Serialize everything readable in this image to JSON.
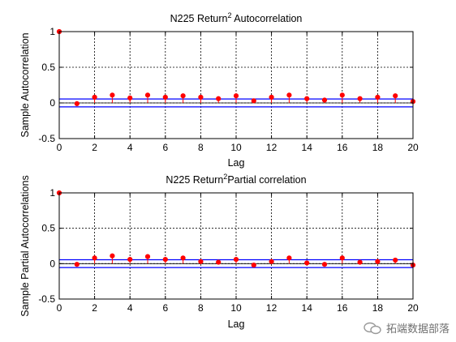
{
  "chart_data": [
    {
      "type": "stem",
      "title_main": "N225 Return",
      "title_sup": "2",
      "title_rest": " Autocorrelation",
      "xlabel": "Lag",
      "ylabel": "Sample Autocorrelation",
      "xlim": [
        0,
        20
      ],
      "ylim": [
        -0.5,
        1
      ],
      "xticks": [
        "0",
        "2",
        "4",
        "6",
        "8",
        "10",
        "12",
        "14",
        "16",
        "18",
        "20"
      ],
      "yticks": [
        "-0.5",
        "0",
        "0.5",
        "1"
      ],
      "grid": true,
      "bounds": 0.055,
      "x": [
        0,
        1,
        2,
        3,
        4,
        5,
        6,
        7,
        8,
        9,
        10,
        11,
        12,
        13,
        14,
        15,
        16,
        17,
        18,
        19,
        20
      ],
      "values": [
        1,
        -0.01,
        0.08,
        0.11,
        0.07,
        0.11,
        0.08,
        0.1,
        0.08,
        0.06,
        0.1,
        0.03,
        0.08,
        0.11,
        0.06,
        0.04,
        0.11,
        0.06,
        0.08,
        0.1,
        0.02
      ]
    },
    {
      "type": "stem",
      "title_main": "N225 Return",
      "title_sup": "2",
      "title_rest": "Partial correlation",
      "xlabel": "Lag",
      "ylabel": "Sample Partial Autocorrelations",
      "xlim": [
        0,
        20
      ],
      "ylim": [
        -0.5,
        1
      ],
      "xticks": [
        "0",
        "2",
        "4",
        "6",
        "8",
        "10",
        "12",
        "14",
        "16",
        "18",
        "20"
      ],
      "yticks": [
        "-0.5",
        "0",
        "0.5",
        "1"
      ],
      "grid": true,
      "bounds": 0.055,
      "x": [
        0,
        1,
        2,
        3,
        4,
        5,
        6,
        7,
        8,
        9,
        10,
        11,
        12,
        13,
        14,
        15,
        16,
        17,
        18,
        19,
        20
      ],
      "values": [
        1,
        -0.01,
        0.08,
        0.11,
        0.06,
        0.1,
        0.06,
        0.08,
        0.03,
        0.02,
        0.06,
        -0.02,
        0.03,
        0.08,
        0.01,
        -0.01,
        0.08,
        0.02,
        0.03,
        0.05,
        -0.02
      ]
    }
  ],
  "colors": {
    "stem": "#ff0000",
    "bounds": "#0000ff",
    "zero": "#000000"
  },
  "watermark": {
    "text": "拓端数据部落"
  }
}
